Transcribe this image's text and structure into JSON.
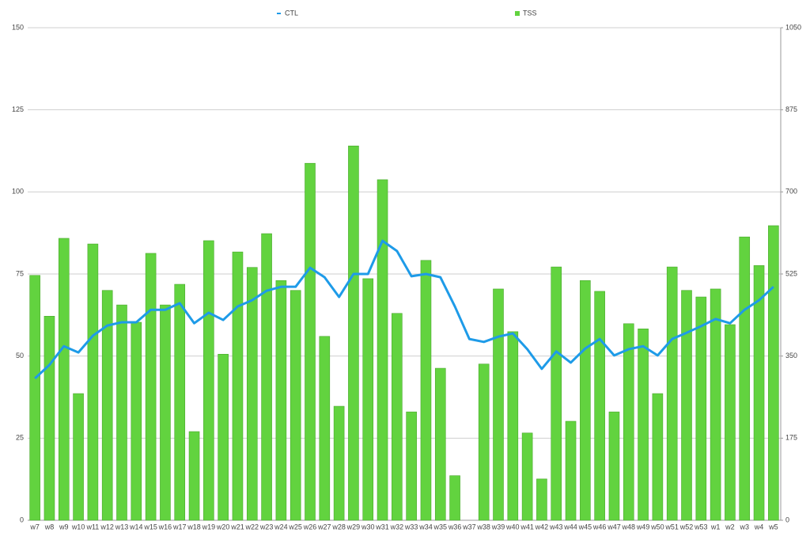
{
  "chart_data": {
    "type": "bar",
    "categories": [
      "w7",
      "w8",
      "w9",
      "w10",
      "w11",
      "w12",
      "w13",
      "w14",
      "w15",
      "w16",
      "w17",
      "w18",
      "w19",
      "w20",
      "w21",
      "w22",
      "w23",
      "w24",
      "w25",
      "w26",
      "w27",
      "w28",
      "w29",
      "w30",
      "w31",
      "w32",
      "w33",
      "w34",
      "w35",
      "w36",
      "w37",
      "w38",
      "w39",
      "w40",
      "w41",
      "w42",
      "w43",
      "w44",
      "w45",
      "w46",
      "w47",
      "w48",
      "w49",
      "w50",
      "w51",
      "w52",
      "w53",
      "w1",
      "w2",
      "w3",
      "w4",
      "w5"
    ],
    "series": [
      {
        "name": "CTL",
        "type": "line",
        "axis": "y",
        "color": "#1e9be8",
        "values": [
          43.2,
          47.3,
          53,
          51.1,
          56.2,
          59.3,
          60.3,
          60.3,
          64.1,
          64.1,
          66.1,
          60,
          63.2,
          61,
          65.1,
          67,
          69.9,
          71.1,
          71.1,
          76.9,
          74,
          68,
          75,
          75,
          85.1,
          82,
          74.3,
          75,
          74,
          65.1,
          55.2,
          54.3,
          55.9,
          56.9,
          52.1,
          46.1,
          51.4,
          48,
          52.3,
          55.2,
          50.2,
          52.1,
          53,
          50.2,
          55.2,
          57.1,
          59.1,
          61.3,
          60,
          64.1,
          67,
          71.1
        ]
      },
      {
        "name": "TSS",
        "type": "bar",
        "axis": "y2",
        "color": "#62d33f",
        "values": [
          522,
          435,
          601,
          270,
          589,
          490,
          459,
          422,
          569,
          459,
          503,
          189,
          596,
          354,
          572,
          539,
          611,
          511,
          490,
          761,
          392,
          243,
          798,
          515,
          726,
          441,
          231,
          554,
          324,
          95,
          0,
          333,
          493,
          402,
          186,
          88,
          540,
          211,
          511,
          488,
          231,
          419,
          408,
          270,
          540,
          490,
          476,
          493,
          417,
          604,
          543,
          628
        ]
      }
    ],
    "ylim": [
      0,
      150
    ],
    "yticks": [
      0,
      25,
      50,
      75,
      100,
      125,
      150
    ],
    "y2lim": [
      0,
      1050
    ],
    "y2ticks": [
      0,
      175,
      350,
      525,
      700,
      875,
      1050
    ],
    "grid": true
  }
}
